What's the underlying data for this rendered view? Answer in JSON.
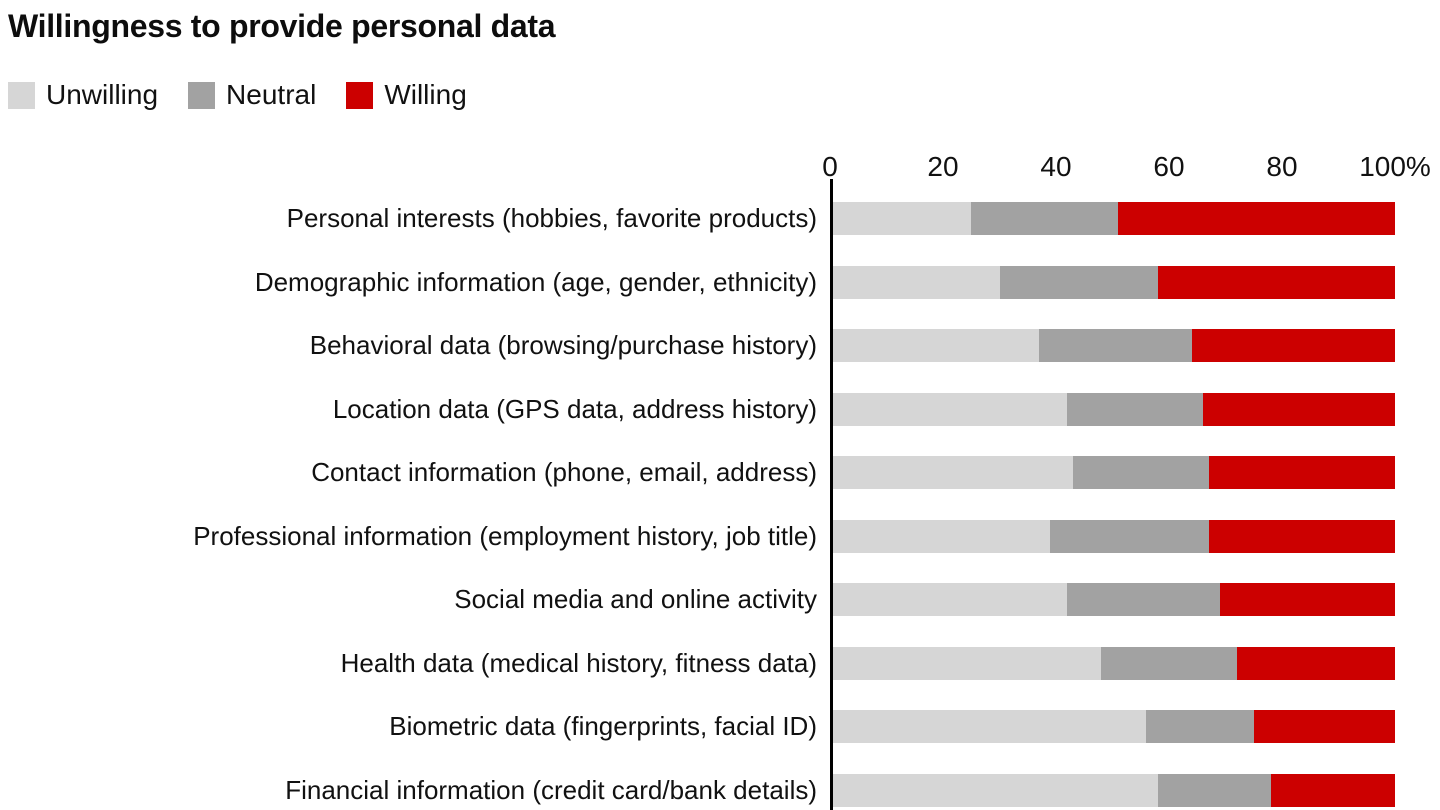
{
  "title": "Willingness to provide personal data",
  "legend": {
    "items": [
      {
        "label": "Unwilling",
        "color": "#d6d6d6"
      },
      {
        "label": "Neutral",
        "color": "#a2a2a2"
      },
      {
        "label": "Willing",
        "color": "#cc0000"
      }
    ]
  },
  "chart_data": {
    "type": "bar",
    "orientation": "horizontal",
    "stacked": true,
    "title": "Willingness to provide personal data",
    "unit": "%",
    "xlim": [
      0,
      100
    ],
    "grid": false,
    "legend_position": "top-left",
    "x_ticks": [
      {
        "value": 0,
        "label": "0"
      },
      {
        "value": 20,
        "label": "20"
      },
      {
        "value": 40,
        "label": "40"
      },
      {
        "value": 60,
        "label": "60"
      },
      {
        "value": 80,
        "label": "80"
      },
      {
        "value": 100,
        "label": "100%"
      }
    ],
    "categories": [
      "Personal interests (hobbies, favorite products)",
      "Demographic information (age, gender, ethnicity)",
      "Behavioral data (browsing/purchase history)",
      "Location data (GPS data, address history)",
      "Contact information (phone, email, address)",
      "Professional information (employment history, job title)",
      "Social media and online activity",
      "Health data (medical history, fitness data)",
      "Biometric data (fingerprints, facial ID)",
      "Financial information (credit card/bank details)"
    ],
    "series": [
      {
        "name": "Unwilling",
        "color": "#d6d6d6",
        "values": [
          25,
          30,
          37,
          42,
          43,
          39,
          42,
          48,
          56,
          58
        ]
      },
      {
        "name": "Neutral",
        "color": "#a2a2a2",
        "values": [
          26,
          28,
          27,
          24,
          24,
          28,
          27,
          24,
          19,
          20
        ]
      },
      {
        "name": "Willing",
        "color": "#cc0000",
        "values": [
          49,
          42,
          36,
          34,
          33,
          33,
          31,
          28,
          25,
          22
        ]
      }
    ]
  }
}
